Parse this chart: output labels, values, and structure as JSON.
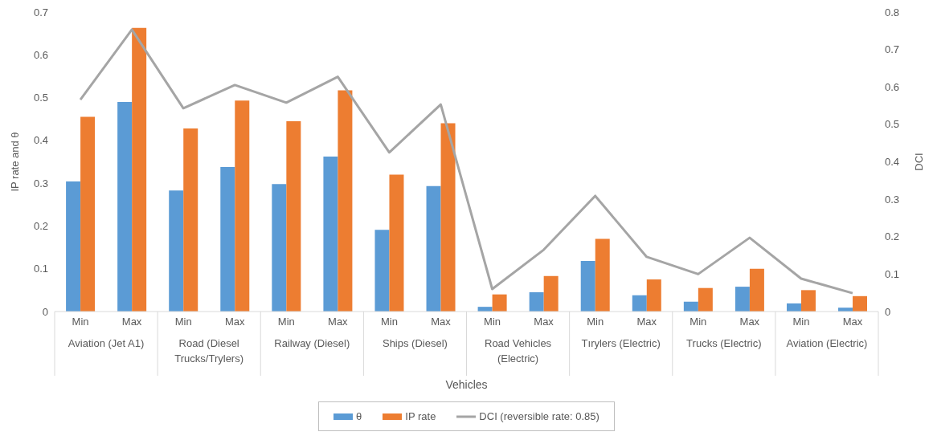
{
  "chart_data": {
    "type": "bar",
    "xlabel": "Vehicles",
    "ylabel": "IP rate and θ",
    "y2label": "DCI",
    "categories": [
      "Min",
      "Max",
      "Min",
      "Max",
      "Min",
      "Max",
      "Min",
      "Max",
      "Min",
      "Max",
      "Min",
      "Max",
      "Min",
      "Max",
      "Min",
      "Max"
    ],
    "annotations": [
      "Aviation (Jet A1)",
      "Road (Diesel Trucks/Trylers)",
      "Railway (Diesel)",
      "Ships (Diesel)",
      "Road Vehicles (Electric)",
      "Tırylers (Electric)",
      "Trucks (Electric)",
      "Aviation (Electric)"
    ],
    "series": [
      {
        "name": "θ",
        "color": "#5b9bd5",
        "values": [
          0.304,
          0.49,
          0.283,
          0.338,
          0.298,
          0.362,
          0.191,
          0.293,
          0.011,
          0.045,
          0.118,
          0.038,
          0.023,
          0.058,
          0.019,
          0.009
        ]
      },
      {
        "name": "IP rate",
        "color": "#ed7d31",
        "values": [
          0.455,
          0.663,
          0.428,
          0.493,
          0.445,
          0.517,
          0.32,
          0.44,
          0.04,
          0.083,
          0.17,
          0.075,
          0.055,
          0.1,
          0.05,
          0.036
        ]
      },
      {
        "name": "DCI (reversible rate: 0.85)",
        "type": "line",
        "axis": "y2",
        "color": "#a5a5a5",
        "values": [
          0.566,
          0.753,
          0.543,
          0.605,
          0.558,
          0.627,
          0.425,
          0.553,
          0.06,
          0.165,
          0.309,
          0.146,
          0.1,
          0.197,
          0.088,
          0.049
        ]
      }
    ],
    "ylim": [
      0,
      0.7
    ],
    "yticks": [
      0,
      0.1,
      0.2,
      0.3,
      0.4,
      0.5,
      0.6,
      0.7
    ],
    "y2lim": [
      0,
      0.8
    ],
    "y2ticks": [
      0,
      0.1,
      0.2,
      0.3,
      0.4,
      0.5,
      0.6,
      0.7,
      0.8
    ],
    "legend": "bottom",
    "marker": "none"
  }
}
